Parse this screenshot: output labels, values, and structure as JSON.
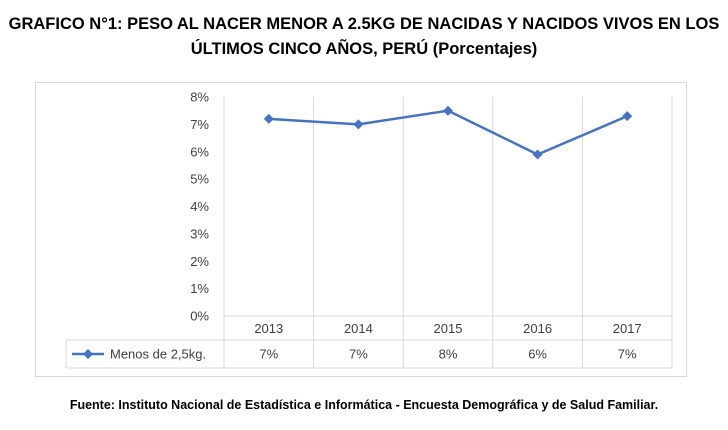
{
  "title_line1": "GRAFICO N°1: PESO AL NACER MENOR A 2.5KG DE NACIDAS Y NACIDOS VIVOS EN LOS",
  "title_line2": "ÚLTIMOS CINCO AÑOS, PERÚ (Porcentajes)",
  "source": "Fuente: Instituto Nacional de Estadística e Informática - Encuesta Demográfica y de Salud Familiar.",
  "chart_data": {
    "type": "line",
    "title": "GRAFICO N°1: PESO AL NACER MENOR A 2.5KG DE NACIDAS Y NACIDOS VIVOS EN LOS ÚLTIMOS CINCO AÑOS, PERÚ (Porcentajes)",
    "categories": [
      "2013",
      "2014",
      "2015",
      "2016",
      "2017"
    ],
    "series": [
      {
        "name": "Menos de 2,5kg.",
        "values": [
          7.2,
          7.0,
          7.5,
          5.9,
          7.3
        ],
        "table_labels": [
          "7%",
          "7%",
          "8%",
          "6%",
          "7%"
        ],
        "color": "#4472c4"
      }
    ],
    "y_ticks": [
      "0%",
      "1%",
      "2%",
      "3%",
      "4%",
      "5%",
      "6%",
      "7%",
      "8%"
    ],
    "ylim": [
      0,
      8
    ],
    "xlabel": "",
    "ylabel": "",
    "grid": "vertical",
    "legend": "data-table"
  }
}
